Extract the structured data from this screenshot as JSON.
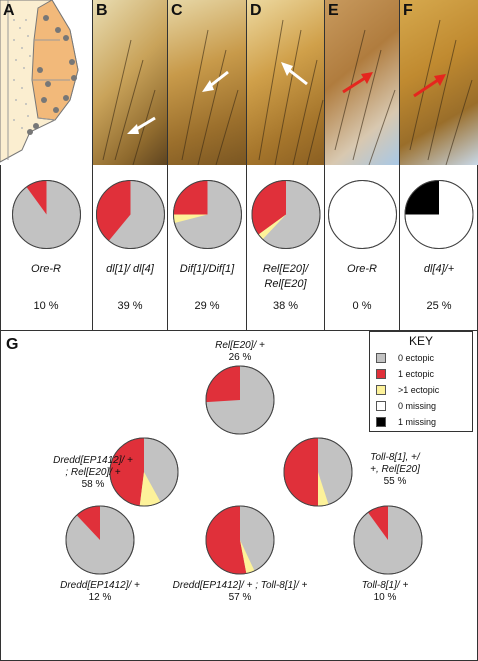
{
  "colors": {
    "zero_ectopic": "#c2c2c2",
    "one_ectopic": "#e0303a",
    "multi_ectopic": "#fdf29a",
    "zero_missing": "#ffffff",
    "one_missing": "#000000"
  },
  "panels": [
    {
      "label": "A",
      "genotype_line1": "Ore-R",
      "genotype_line2": "",
      "percent": "10 %",
      "pie": {
        "one": 0.1,
        "multi": 0,
        "base": "zero_ectopic"
      }
    },
    {
      "label": "B",
      "genotype_line1": "dl[1]/ dl[4]",
      "genotype_line2": "",
      "percent": "39 %",
      "pie": {
        "one": 0.39,
        "multi": 0,
        "base": "zero_ectopic"
      }
    },
    {
      "label": "C",
      "genotype_line1": "Dif[1]/Dif[1]",
      "genotype_line2": "",
      "percent": "29 %",
      "pie": {
        "one": 0.25,
        "multi": 0.04,
        "base": "zero_ectopic"
      }
    },
    {
      "label": "D",
      "genotype_line1": "Rel[E20]/",
      "genotype_line2": "Rel[E20]",
      "percent": "38 %",
      "pie": {
        "one": 0.35,
        "multi": 0.03,
        "base": "zero_ectopic"
      }
    },
    {
      "label": "E",
      "genotype_line1": "Ore-R",
      "genotype_line2": "",
      "percent": "0 %",
      "pie": {
        "one": 0,
        "multi": 0,
        "base": "zero_missing"
      }
    },
    {
      "label": "F",
      "genotype_line1": "dl[4]/+",
      "genotype_line2": "",
      "percent": "25 %",
      "pie": {
        "one": 0.25,
        "multi": 0,
        "base": "zero_missing",
        "one_color": "one_missing"
      }
    }
  ],
  "panel_g": {
    "label": "G",
    "items": [
      {
        "line1": "Rel[E20]/ +",
        "line2": "",
        "percent": "26 %",
        "pie": {
          "one": 0.26,
          "multi": 0
        }
      },
      {
        "line1": "Dredd[EP1412]/ +",
        "line2": "; Rel[E20]/ +",
        "percent": "58 %",
        "pie": {
          "one": 0.48,
          "multi": 0.1
        }
      },
      {
        "line1": "Toll-8[1], +/",
        "line2": "+, Rel[E20]",
        "percent": "55 %",
        "pie": {
          "one": 0.5,
          "multi": 0.05
        }
      },
      {
        "line1": "Dredd[EP1412]/ +",
        "line2": "",
        "percent": "12 %",
        "pie": {
          "one": 0.12,
          "multi": 0
        }
      },
      {
        "line1": "Dredd[EP1412]/ + ; Toll-8[1]/ +",
        "line2": "",
        "percent": "57 %",
        "pie": {
          "one": 0.53,
          "multi": 0.04
        }
      },
      {
        "line1": "Toll-8[1]/ +",
        "line2": "",
        "percent": "10 %",
        "pie": {
          "one": 0.1,
          "multi": 0
        }
      }
    ]
  },
  "key": {
    "title": "KEY",
    "entries": [
      {
        "label": "0 ectopic",
        "color": "#c2c2c2"
      },
      {
        "label": "1 ectopic",
        "color": "#e0303a"
      },
      {
        "label": ">1 ectopic",
        "color": "#fdf29a"
      },
      {
        "label": "0 missing",
        "color": "#ffffff"
      },
      {
        "label": "1 missing",
        "color": "#000000"
      }
    ]
  }
}
